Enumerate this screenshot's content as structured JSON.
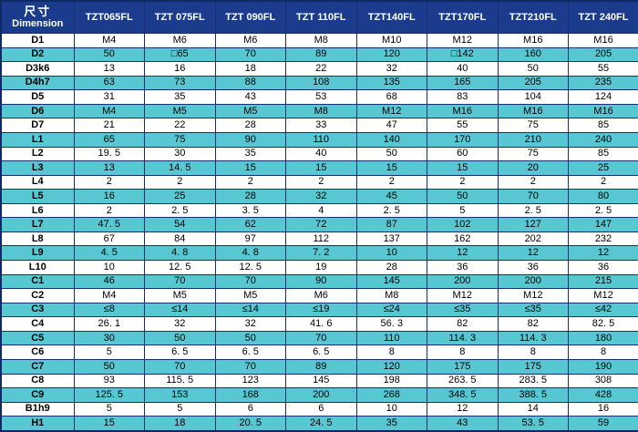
{
  "table": {
    "colors": {
      "header_bg": "#1b3c8c",
      "header_text": "#ffffff",
      "stripe_teal": "#57c7d2",
      "stripe_white": "#ffffff",
      "border": "#14306e",
      "body_text": "#000000"
    },
    "header": {
      "dimension_label_cn": "尺寸",
      "dimension_label_en": "Dimension",
      "columns": [
        "TZT065FL",
        "TZT 075FL",
        "TZT 090FL",
        "TZT 110FL",
        "TZT140FL",
        "TZT170FL",
        "TZT210FL",
        "TZT 240FL"
      ]
    },
    "rows": [
      {
        "label": "D1",
        "values": [
          "M4",
          "M6",
          "M6",
          "M8",
          "M10",
          "M12",
          "M16",
          "M16"
        ]
      },
      {
        "label": "D2",
        "values": [
          "50",
          "□65",
          "70",
          "89",
          "120",
          "□142",
          "160",
          "205"
        ]
      },
      {
        "label": "D3k6",
        "values": [
          "13",
          "16",
          "18",
          "22",
          "32",
          "40",
          "50",
          "55"
        ]
      },
      {
        "label": "D4h7",
        "values": [
          "63",
          "73",
          "88",
          "108",
          "135",
          "165",
          "205",
          "235"
        ]
      },
      {
        "label": "D5",
        "values": [
          "31",
          "35",
          "43",
          "53",
          "68",
          "83",
          "104",
          "124"
        ]
      },
      {
        "label": "D6",
        "values": [
          "M4",
          "M5",
          "M5",
          "M8",
          "M12",
          "M16",
          "M16",
          "M16"
        ]
      },
      {
        "label": "D7",
        "values": [
          "21",
          "22",
          "28",
          "33",
          "47",
          "55",
          "75",
          "85"
        ]
      },
      {
        "label": "L1",
        "values": [
          "65",
          "75",
          "90",
          "110",
          "140",
          "170",
          "210",
          "240"
        ]
      },
      {
        "label": "L2",
        "values": [
          "19. 5",
          "30",
          "35",
          "40",
          "50",
          "60",
          "75",
          "85"
        ]
      },
      {
        "label": "L3",
        "values": [
          "13",
          "14. 5",
          "15",
          "15",
          "15",
          "15",
          "20",
          "25"
        ]
      },
      {
        "label": "L4",
        "values": [
          "2",
          "2",
          "2",
          "2",
          "2",
          "2",
          "2",
          "2"
        ]
      },
      {
        "label": "L5",
        "values": [
          "16",
          "25",
          "28",
          "32",
          "45",
          "50",
          "70",
          "80"
        ]
      },
      {
        "label": "L6",
        "values": [
          "2",
          "2. 5",
          "3. 5",
          "4",
          "2. 5",
          "5",
          "2. 5",
          "2. 5"
        ]
      },
      {
        "label": "L7",
        "values": [
          "47. 5",
          "54",
          "62",
          "72",
          "87",
          "102",
          "127",
          "147"
        ]
      },
      {
        "label": "L8",
        "values": [
          "67",
          "84",
          "97",
          "112",
          "137",
          "162",
          "202",
          "232"
        ]
      },
      {
        "label": "L9",
        "values": [
          "4. 5",
          "4. 8",
          "4. 8",
          "7. 2",
          "10",
          "12",
          "12",
          "12"
        ]
      },
      {
        "label": "L10",
        "values": [
          "10",
          "12. 5",
          "12. 5",
          "19",
          "28",
          "36",
          "36",
          "36"
        ]
      },
      {
        "label": "C1",
        "values": [
          "46",
          "70",
          "70",
          "90",
          "145",
          "200",
          "200",
          "215"
        ]
      },
      {
        "label": "C2",
        "values": [
          "M4",
          "M5",
          "M5",
          "M6",
          "M8",
          "M12",
          "M12",
          "M12"
        ]
      },
      {
        "label": "C3",
        "values": [
          "≤8",
          "≤14",
          "≤14",
          "≤19",
          "≤24",
          "≤35",
          "≤35",
          "≤42"
        ]
      },
      {
        "label": "C4",
        "values": [
          "26. 1",
          "32",
          "32",
          "41. 6",
          "56. 3",
          "82",
          "82",
          "82. 5"
        ]
      },
      {
        "label": "C5",
        "values": [
          "30",
          "50",
          "50",
          "70",
          "110",
          "114. 3",
          "114. 3",
          "180"
        ]
      },
      {
        "label": "C6",
        "values": [
          "5",
          "6. 5",
          "6. 5",
          "6. 5",
          "8",
          "8",
          "8",
          "8"
        ]
      },
      {
        "label": "C7",
        "values": [
          "50",
          "70",
          "70",
          "89",
          "120",
          "175",
          "175",
          "190"
        ]
      },
      {
        "label": "C8",
        "values": [
          "93",
          "115. 5",
          "123",
          "145",
          "198",
          "263. 5",
          "283. 5",
          "308"
        ]
      },
      {
        "label": "C9",
        "values": [
          "125. 5",
          "153",
          "168",
          "200",
          "268",
          "348. 5",
          "388. 5",
          "428"
        ]
      },
      {
        "label": "B1h9",
        "values": [
          "5",
          "5",
          "6",
          "6",
          "10",
          "12",
          "14",
          "16"
        ]
      },
      {
        "label": "H1",
        "values": [
          "15",
          "18",
          "20. 5",
          "24. 5",
          "35",
          "43",
          "53. 5",
          "59"
        ]
      }
    ]
  }
}
